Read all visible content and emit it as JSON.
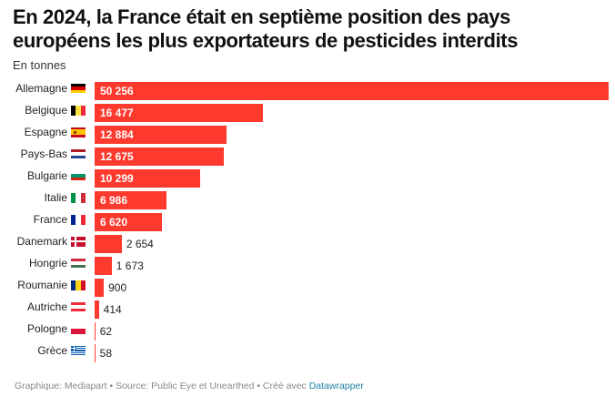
{
  "title": "En 2024, la France était en septième position des pays européens les plus exportateurs de pesticides interdits",
  "subtitle": "En tonnes",
  "footer": {
    "credit": "Graphique: Mediapart • Source: Public Eye et Unearthed • Créé avec ",
    "tool": "Datawrapper"
  },
  "colors": {
    "bar": "#fe3a2e",
    "label_inside": "#ffffff",
    "label_outside": "#222222",
    "link": "#1d81a2"
  },
  "chart_data": {
    "type": "bar",
    "orientation": "horizontal",
    "title": "En 2024, la France était en septième position des pays européens les plus exportateurs de pesticides interdits",
    "subtitle": "En tonnes",
    "xlabel": "",
    "ylabel": "",
    "unit": "tonnes",
    "grid": false,
    "xlim": [
      0,
      50256
    ],
    "categories": [
      "Allemagne",
      "Belgique",
      "Espagne",
      "Pays-Bas",
      "Bulgarie",
      "Italie",
      "France",
      "Danemark",
      "Hongrie",
      "Roumanie",
      "Autriche",
      "Pologne",
      "Grèce"
    ],
    "flags": [
      "de",
      "be",
      "es",
      "nl",
      "bg",
      "it",
      "fr",
      "dk",
      "hu",
      "ro",
      "at",
      "pl",
      "gr"
    ],
    "values": [
      50256,
      16477,
      12884,
      12675,
      10299,
      6986,
      6620,
      2654,
      1673,
      900,
      414,
      62,
      58
    ],
    "value_labels": [
      "50 256",
      "16 477",
      "12 884",
      "12 675",
      "10 299",
      "6 986",
      "6 620",
      "2 654",
      "1 673",
      "900",
      "414",
      "62",
      "58"
    ]
  }
}
